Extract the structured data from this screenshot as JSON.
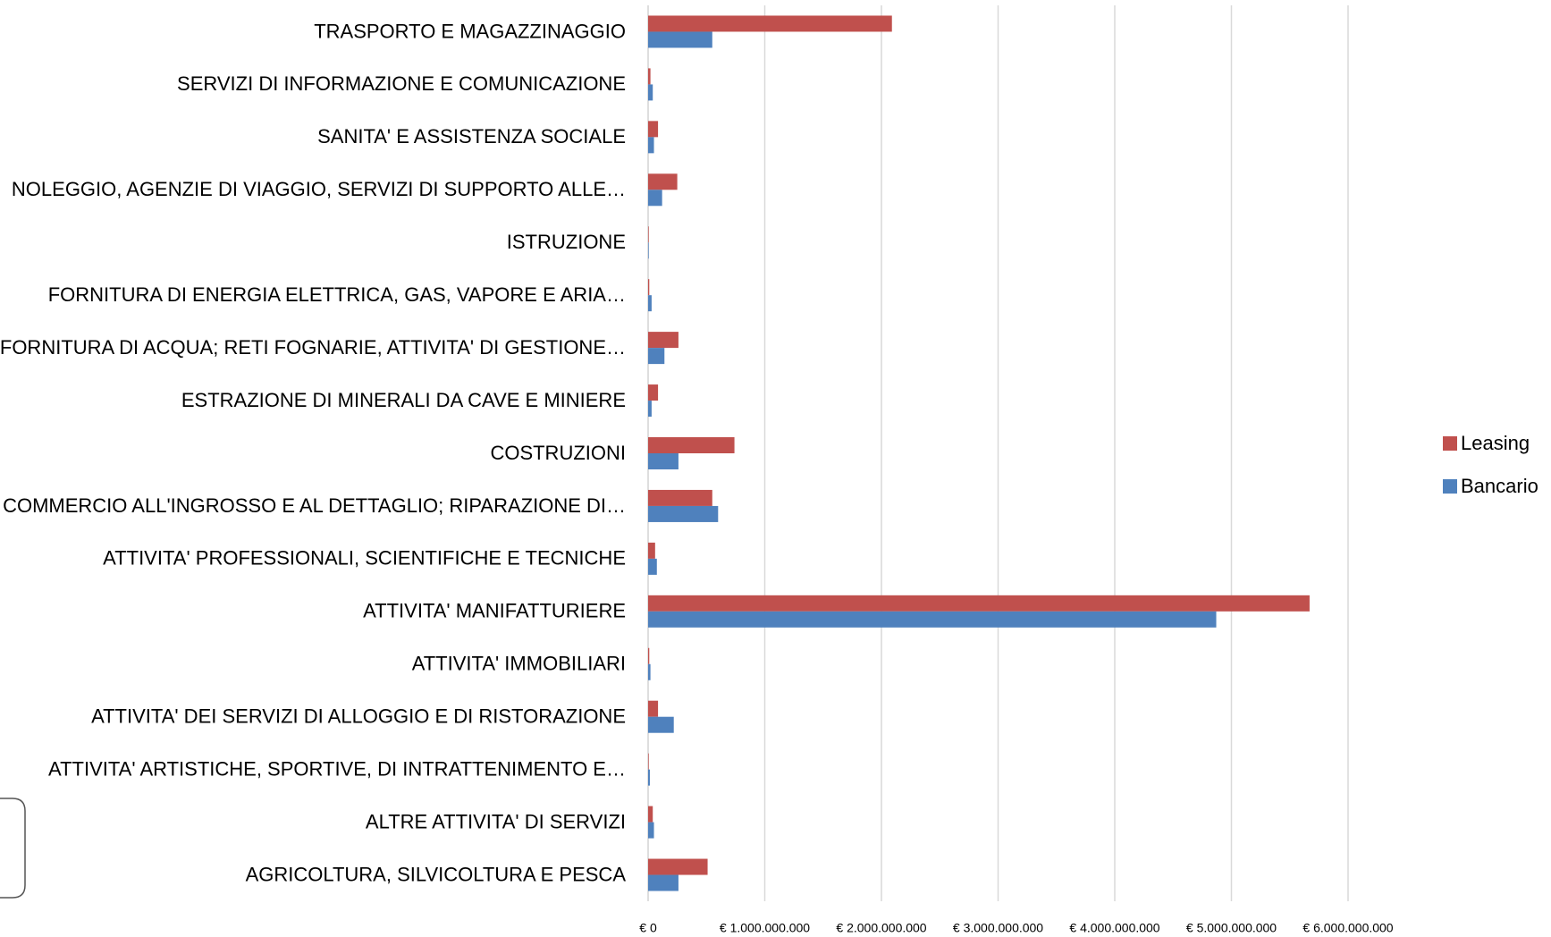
{
  "chart_data": {
    "type": "bar",
    "orientation": "horizontal",
    "categories": [
      "TRASPORTO E MAGAZZINAGGIO",
      "SERVIZI DI INFORMAZIONE E COMUNICAZIONE",
      "SANITA' E ASSISTENZA SOCIALE",
      "NOLEGGIO, AGENZIE DI VIAGGIO, SERVIZI DI SUPPORTO ALLE…",
      "ISTRUZIONE",
      "FORNITURA DI ENERGIA ELETTRICA, GAS, VAPORE E ARIA…",
      "FORNITURA DI ACQUA; RETI FOGNARIE, ATTIVITA' DI GESTIONE…",
      "ESTRAZIONE DI MINERALI DA CAVE E MINIERE",
      "COSTRUZIONI",
      "COMMERCIO ALL'INGROSSO E AL DETTAGLIO; RIPARAZIONE DI…",
      "ATTIVITA' PROFESSIONALI, SCIENTIFICHE E TECNICHE",
      "ATTIVITA' MANIFATTURIERE",
      "ATTIVITA' IMMOBILIARI",
      "ATTIVITA' DEI SERVIZI DI ALLOGGIO E DI RISTORAZIONE",
      "ATTIVITA' ARTISTICHE, SPORTIVE, DI INTRATTENIMENTO E…",
      "ALTRE ATTIVITA' DI SERVIZI",
      "AGRICOLTURA, SILVICOLTURA E PESCA"
    ],
    "series": [
      {
        "name": "Leasing",
        "color": "#c0504d",
        "values": [
          2090000000,
          20000000,
          85000000,
          250000000,
          5000000,
          10000000,
          260000000,
          85000000,
          740000000,
          550000000,
          60000000,
          5670000000,
          10000000,
          85000000,
          5000000,
          40000000,
          510000000
        ]
      },
      {
        "name": "Bancario",
        "color": "#4f81bd",
        "values": [
          550000000,
          40000000,
          50000000,
          120000000,
          5000000,
          30000000,
          140000000,
          30000000,
          260000000,
          600000000,
          75000000,
          4870000000,
          20000000,
          220000000,
          15000000,
          50000000,
          260000000
        ]
      }
    ],
    "xlim": [
      0,
      6000000000
    ],
    "xticks": [
      {
        "value": 0,
        "label": "€ 0"
      },
      {
        "value": 1000000000,
        "label": "€ 1.000.000.000"
      },
      {
        "value": 2000000000,
        "label": "€ 2.000.000.000"
      },
      {
        "value": 3000000000,
        "label": "€ 3.000.000.000"
      },
      {
        "value": 4000000000,
        "label": "€ 4.000.000.000"
      },
      {
        "value": 5000000000,
        "label": "€ 5.000.000.000"
      },
      {
        "value": 6000000000,
        "label": "€ 6.000.000.000"
      }
    ],
    "grid": true,
    "legend": "right"
  }
}
